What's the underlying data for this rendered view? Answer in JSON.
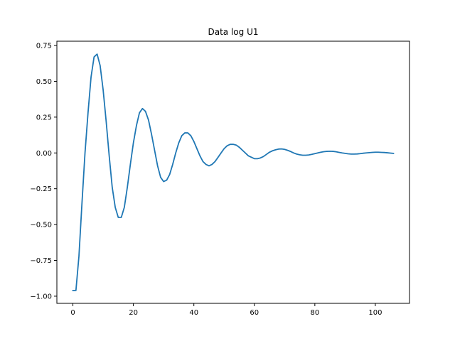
{
  "chart_data": {
    "type": "line",
    "title": "Data log U1",
    "xlabel": "",
    "ylabel": "",
    "xlim": [
      -5.3,
      111.3
    ],
    "ylim": [
      -1.05,
      0.78
    ],
    "x_ticks": [
      0,
      20,
      40,
      60,
      80,
      100
    ],
    "x_tick_labels": [
      "0",
      "20",
      "40",
      "60",
      "80",
      "100"
    ],
    "y_ticks": [
      -1.0,
      -0.75,
      -0.5,
      -0.25,
      0.0,
      0.25,
      0.5,
      0.75
    ],
    "y_tick_labels": [
      "−1.00",
      "−0.75",
      "−0.50",
      "−0.25",
      "0.00",
      "0.25",
      "0.50",
      "0.75"
    ],
    "grid": false,
    "line_color": "#1f77b4",
    "series": [
      {
        "x": [
          0,
          1,
          2,
          3,
          4,
          5,
          6,
          7,
          8,
          9,
          10,
          11,
          12,
          13,
          14,
          15,
          16,
          17,
          18,
          19,
          20,
          21,
          22,
          23,
          24,
          25,
          26,
          27,
          28,
          29,
          30,
          31,
          32,
          33,
          34,
          35,
          36,
          37,
          38,
          39,
          40,
          41,
          42,
          43,
          44,
          45,
          46,
          47,
          48,
          49,
          50,
          51,
          52,
          53,
          54,
          55,
          56,
          57,
          58,
          59,
          60,
          61,
          62,
          63,
          64,
          65,
          66,
          67,
          68,
          69,
          70,
          71,
          72,
          73,
          74,
          75,
          76,
          77,
          78,
          79,
          80,
          81,
          82,
          83,
          84,
          85,
          86,
          87,
          88,
          89,
          90,
          91,
          92,
          93,
          94,
          95,
          96,
          97,
          98,
          99,
          100,
          101,
          102,
          103,
          104,
          105,
          106
        ],
        "values": [
          -0.96,
          -0.96,
          -0.72,
          -0.35,
          0.0,
          0.28,
          0.53,
          0.67,
          0.69,
          0.61,
          0.44,
          0.22,
          -0.02,
          -0.24,
          -0.38,
          -0.45,
          -0.45,
          -0.38,
          -0.24,
          -0.08,
          0.07,
          0.19,
          0.28,
          0.31,
          0.29,
          0.23,
          0.13,
          0.02,
          -0.09,
          -0.17,
          -0.2,
          -0.19,
          -0.15,
          -0.08,
          0.0,
          0.07,
          0.12,
          0.14,
          0.14,
          0.12,
          0.08,
          0.03,
          -0.02,
          -0.06,
          -0.08,
          -0.09,
          -0.08,
          -0.06,
          -0.03,
          0.0,
          0.03,
          0.05,
          0.06,
          0.06,
          0.055,
          0.04,
          0.02,
          0.0,
          -0.02,
          -0.03,
          -0.04,
          -0.04,
          -0.035,
          -0.025,
          -0.01,
          0.005,
          0.015,
          0.022,
          0.027,
          0.028,
          0.025,
          0.018,
          0.01,
          0.0,
          -0.008,
          -0.013,
          -0.016,
          -0.016,
          -0.014,
          -0.01,
          -0.005,
          0.0,
          0.005,
          0.009,
          0.011,
          0.012,
          0.011,
          0.008,
          0.004,
          0.0,
          -0.003,
          -0.006,
          -0.008,
          -0.008,
          -0.007,
          -0.005,
          -0.002,
          0.0,
          0.002,
          0.004,
          0.005,
          0.005,
          0.004,
          0.003,
          0.001,
          -0.001,
          -0.003
        ]
      }
    ]
  }
}
